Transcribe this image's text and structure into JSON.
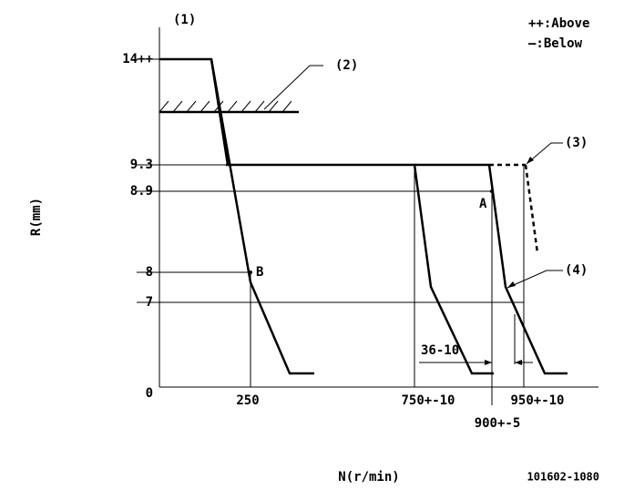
{
  "header": {
    "marker": "(1)",
    "legend_above": "++:Above",
    "legend_below": "—:Below"
  },
  "y_axis": {
    "title": "R(mm)",
    "labels": [
      "14++",
      "9.3",
      "8.9",
      "8",
      "7",
      "0"
    ]
  },
  "x_axis": {
    "title": "N(r/min)",
    "labels": [
      "250",
      "750+-10",
      "900+-5",
      "950+-10"
    ]
  },
  "callouts": [
    "(2)",
    "(3)",
    "(4)"
  ],
  "points": [
    "A",
    "B"
  ],
  "dimension": "36-10",
  "code": "101602-1080"
}
